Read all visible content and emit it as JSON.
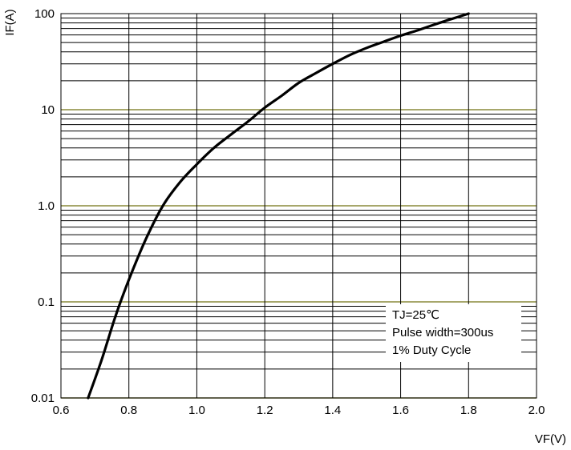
{
  "chart_data": {
    "type": "line",
    "xlabel": "VF(V)",
    "ylabel": "IF(A)",
    "xlim": [
      0.6,
      2.0
    ],
    "ylim": [
      0.01,
      100
    ],
    "y_scale": "log",
    "grid": true,
    "colors": {
      "curve": "#000000",
      "grid": "#000000",
      "decade_grid": "#8a8a3a"
    },
    "x_ticks": [
      {
        "value": 0.6,
        "label": "0.6"
      },
      {
        "value": 0.8,
        "label": "0.8"
      },
      {
        "value": 1.0,
        "label": "1.0"
      },
      {
        "value": 1.2,
        "label": "1.2"
      },
      {
        "value": 1.4,
        "label": "1.4"
      },
      {
        "value": 1.6,
        "label": "1.6"
      },
      {
        "value": 1.8,
        "label": "1.8"
      },
      {
        "value": 2.0,
        "label": "2.0"
      }
    ],
    "y_ticks": [
      {
        "value": 0.01,
        "label": "0.01"
      },
      {
        "value": 0.1,
        "label": "0.1"
      },
      {
        "value": 1,
        "label": "1.0"
      },
      {
        "value": 10,
        "label": "10"
      },
      {
        "value": 100,
        "label": "100"
      }
    ],
    "series": [
      {
        "x": [
          0.68,
          0.72,
          0.76,
          0.8,
          0.85,
          0.9,
          0.95,
          1.0,
          1.05,
          1.1,
          1.15,
          1.2,
          1.25,
          1.3,
          1.35,
          1.4,
          1.45,
          1.5,
          1.55,
          1.6,
          1.65,
          1.7,
          1.75,
          1.8
        ],
        "y": [
          0.01,
          0.025,
          0.07,
          0.17,
          0.45,
          1.0,
          1.75,
          2.7,
          4.0,
          5.5,
          7.5,
          10.5,
          14.0,
          19.0,
          24.0,
          30.0,
          37.0,
          44.0,
          51.0,
          59.0,
          67.0,
          77.0,
          88.0,
          100.0
        ]
      }
    ],
    "annotation": [
      "TJ=25℃",
      "Pulse width=300us",
      "1% Duty Cycle"
    ]
  }
}
